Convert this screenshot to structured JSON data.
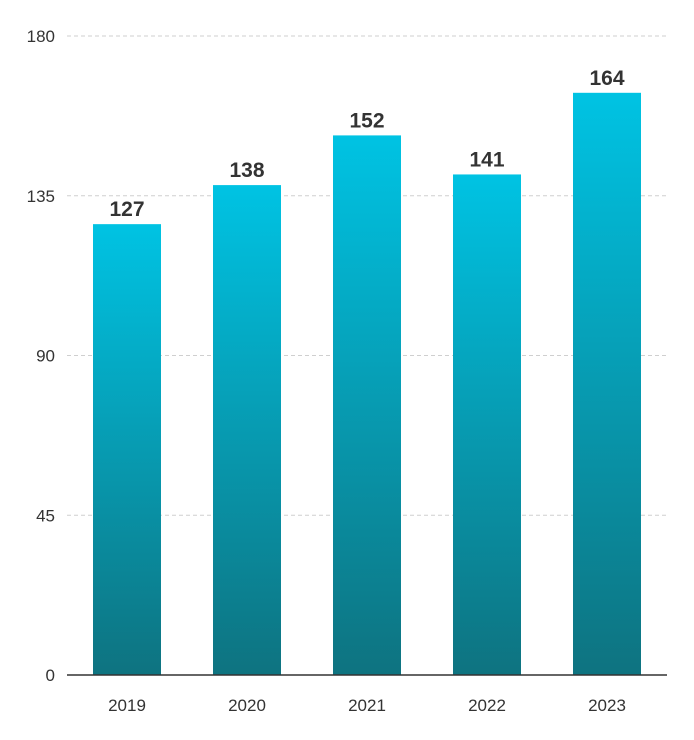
{
  "chart_data": {
    "type": "bar",
    "categories": [
      "2019",
      "2020",
      "2021",
      "2022",
      "2023"
    ],
    "values": [
      127,
      138,
      152,
      141,
      164
    ],
    "data_labels": [
      "127",
      "138",
      "152",
      "141",
      "164"
    ],
    "title": "",
    "xlabel": "",
    "ylabel": "",
    "ylim": [
      0,
      180
    ],
    "yticks": [
      0,
      45,
      90,
      135,
      180
    ],
    "ytick_labels": [
      "0",
      "45",
      "90",
      "135",
      "180"
    ],
    "grid": true,
    "bar_gradient": {
      "top": "#00c3e3",
      "bottom": "#0e7380"
    }
  }
}
